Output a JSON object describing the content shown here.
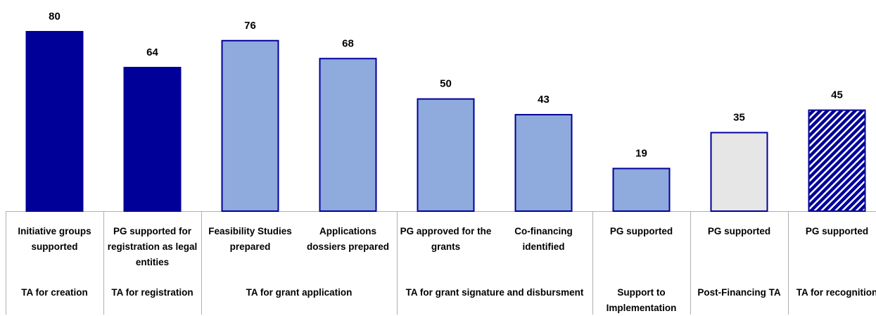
{
  "chart_data": {
    "type": "bar",
    "categories": [
      "Initiative groups supported",
      "PG supported for registration as legal entities",
      "Feasibility Studies prepared",
      "Applications dossiers prepared",
      "PG approved for the grants",
      "Co-financing identified",
      "PG supported",
      "PG supported",
      "PG supported"
    ],
    "values": [
      80,
      64,
      76,
      68,
      50,
      43,
      19,
      35,
      45
    ],
    "fills": [
      "#000099",
      "#000099",
      "#8faadc",
      "#8faadc",
      "#8faadc",
      "#8faadc",
      "#8faadc",
      "#e7e6e6",
      "hatch"
    ],
    "border_color": "#000099",
    "groups": [
      {
        "label": "TA for creation",
        "span": 1
      },
      {
        "label": "TA for registration",
        "span": 1
      },
      {
        "label": "TA for grant application",
        "span": 2
      },
      {
        "label": "TA for grant signature and disbursment",
        "span": 2
      },
      {
        "label": "Support to Implementation",
        "span": 1
      },
      {
        "label": "Post-Financing TA",
        "span": 1
      },
      {
        "label": "TA for recognition",
        "span": 1
      }
    ]
  }
}
